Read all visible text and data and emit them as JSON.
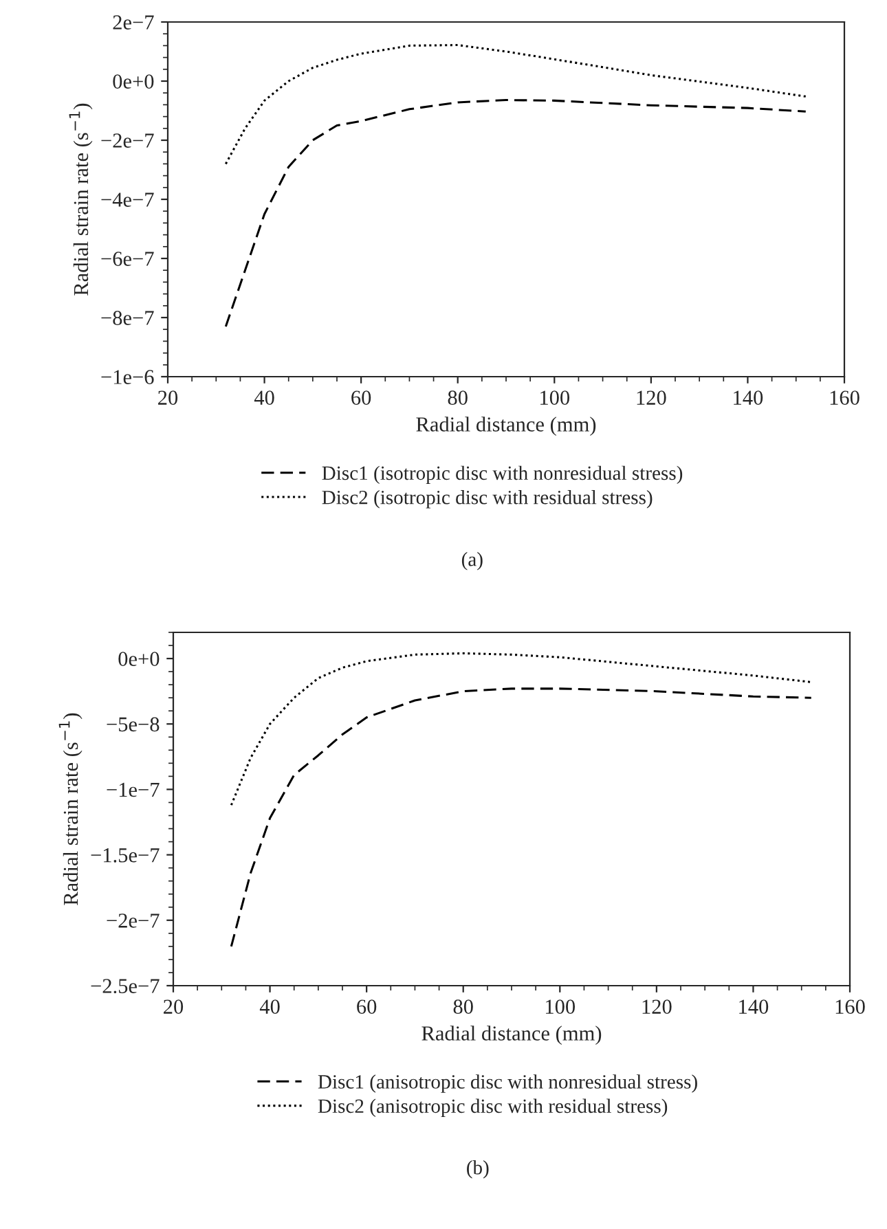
{
  "chart_data": [
    {
      "type": "line",
      "xlabel": "Radial distance (mm)",
      "ylabel": "Radial strain rate (s$^{−1}$)",
      "x": [
        32,
        36,
        40,
        45,
        50,
        55,
        60,
        70,
        80,
        90,
        100,
        120,
        140,
        152
      ],
      "series": [
        {
          "name": "Disc1 (isotropic disc with nonresidual stress)",
          "color": "#000000",
          "line_style": "dashed",
          "values": [
            -8.3e-07,
            -6.4e-07,
            -4.5e-07,
            -2.9e-07,
            -2e-07,
            -1.5e-07,
            -1.35e-07,
            -9.5e-08,
            -7.2e-08,
            -6.4e-08,
            -6.6e-08,
            -8.2e-08,
            -9.1e-08,
            -1.03e-07
          ]
        },
        {
          "name": "Disc2 (isotropic disc with residual stress)",
          "color": "#000000",
          "line_style": "dotted",
          "values": [
            -2.8e-07,
            -1.6e-07,
            -6.6e-08,
            0.0,
            4.5e-08,
            7.2e-08,
            9.3e-08,
            1.2e-07,
            1.22e-07,
            1e-07,
            7.4e-08,
            2e-08,
            -2.3e-08,
            -5.2e-08
          ]
        }
      ],
      "xlim": [
        20,
        160
      ],
      "xticks": [
        20,
        40,
        60,
        80,
        100,
        120,
        140,
        160
      ],
      "ylim": [
        -1e-06,
        2e-07
      ],
      "yticks": [
        {
          "value": -1e-06,
          "label": "−1e−6"
        },
        {
          "value": -8e-07,
          "label": "−8e−7"
        },
        {
          "value": -6e-07,
          "label": "−6e−7"
        },
        {
          "value": -4e-07,
          "label": "−4e−7"
        },
        {
          "value": -2e-07,
          "label": "−2e−7"
        },
        {
          "value": 0,
          "label": "0e+0"
        },
        {
          "value": 2e-07,
          "label": "2e−7"
        }
      ],
      "legend": "bottom",
      "grid": false,
      "annotations": [
        "(a)"
      ]
    },
    {
      "type": "line",
      "xlabel": "Radial distance (mm)",
      "ylabel": "Radial strain rate (s$^{−1}$)",
      "x": [
        32,
        36,
        40,
        45,
        50,
        55,
        60,
        70,
        80,
        90,
        100,
        120,
        140,
        152
      ],
      "series": [
        {
          "name": "Disc1 (anisotropic disc with nonresidual stress)",
          "color": "#000000",
          "line_style": "dashed",
          "values": [
            -2.2e-07,
            -1.64e-07,
            -1.22e-07,
            -8.9e-08,
            -7.4e-08,
            -5.8e-08,
            -4.5e-08,
            -3.2e-08,
            -2.5e-08,
            -2.3e-08,
            -2.3e-08,
            -2.5e-08,
            -2.9e-08,
            -3e-08
          ]
        },
        {
          "name": "Disc2 (anisotropic disc with residual stress)",
          "color": "#000000",
          "line_style": "dotted",
          "values": [
            -1.12e-07,
            -7.6e-08,
            -5e-08,
            -3e-08,
            -1.5e-08,
            -7e-09,
            -2e-09,
            3e-09,
            4e-09,
            3e-09,
            1e-09,
            -6e-09,
            -1.3e-08,
            -1.8e-08
          ]
        }
      ],
      "xlim": [
        20,
        160
      ],
      "xticks": [
        20,
        40,
        60,
        80,
        100,
        120,
        140,
        160
      ],
      "ylim": [
        -2.5e-07,
        2e-08
      ],
      "yticks": [
        {
          "value": -2.5e-07,
          "label": "−2.5e−7"
        },
        {
          "value": -2e-07,
          "label": "−2e−7"
        },
        {
          "value": -1.5e-07,
          "label": "−1.5e−7"
        },
        {
          "value": -1e-07,
          "label": "−1e−7"
        },
        {
          "value": -5e-08,
          "label": "−5e−8"
        },
        {
          "value": 0,
          "label": "0e+0"
        }
      ],
      "legend": "bottom",
      "grid": false,
      "annotations": [
        "(b)"
      ]
    }
  ]
}
